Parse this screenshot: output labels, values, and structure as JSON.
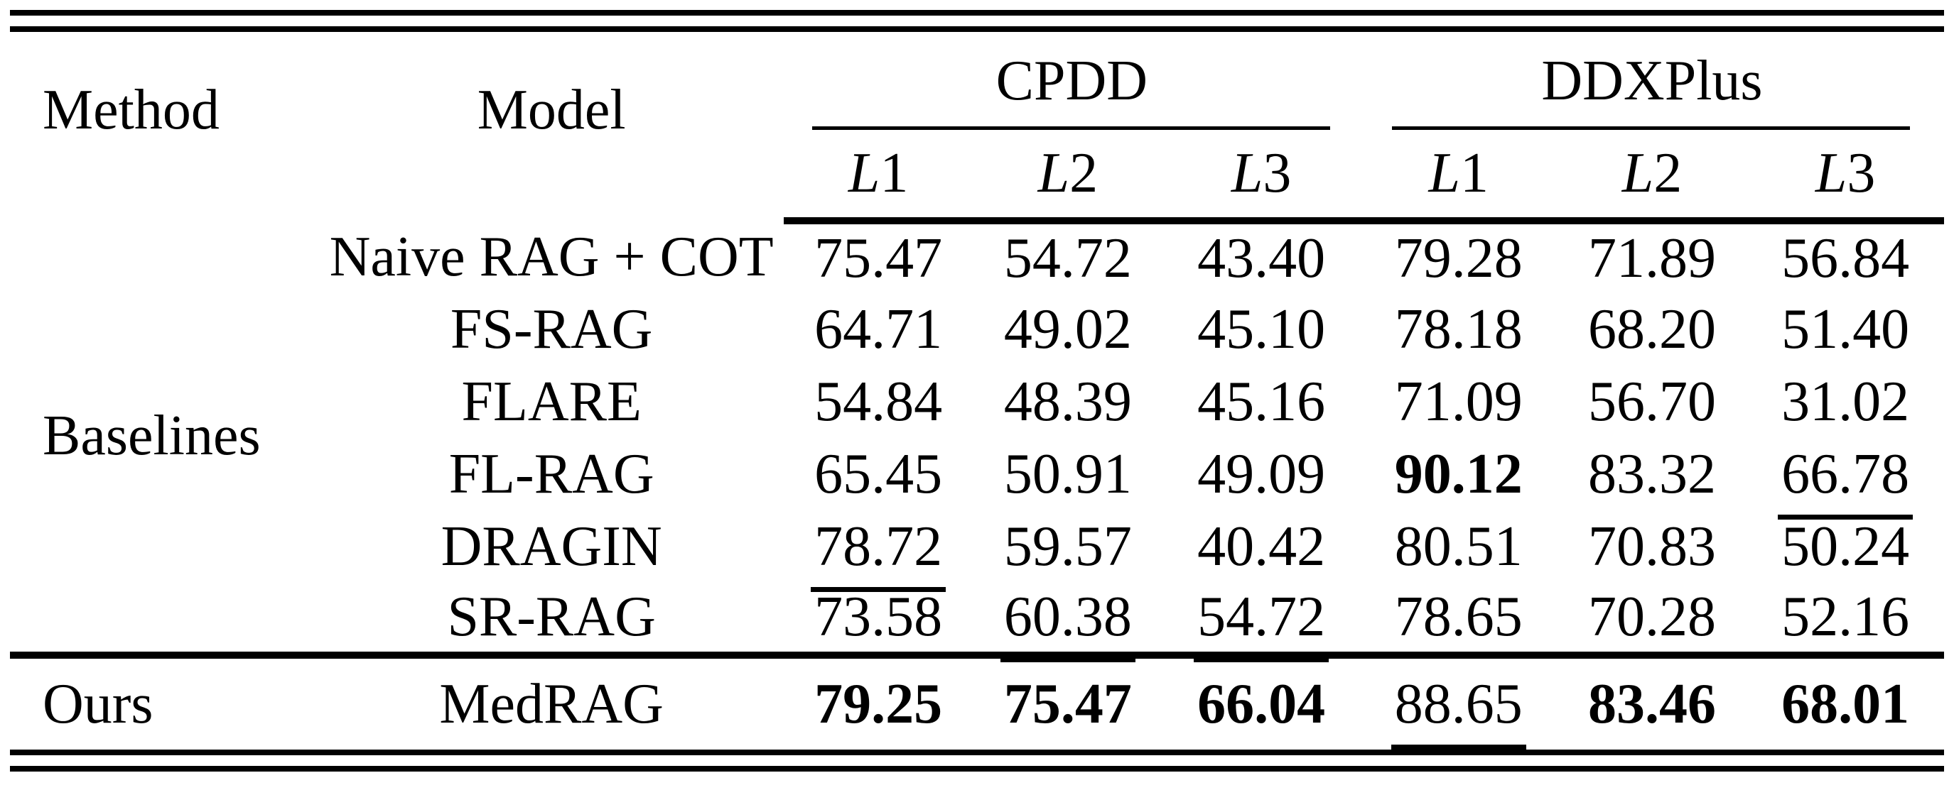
{
  "table": {
    "headers": {
      "method": "Method",
      "model": "Model"
    },
    "groups": [
      {
        "label": "CPDD"
      },
      {
        "label": "DDXPlus"
      }
    ],
    "sub_headers": [
      {
        "letter": "L",
        "digit": "1"
      },
      {
        "letter": "L",
        "digit": "2"
      },
      {
        "letter": "L",
        "digit": "3"
      },
      {
        "letter": "L",
        "digit": "1"
      },
      {
        "letter": "L",
        "digit": "2"
      },
      {
        "letter": "L",
        "digit": "3"
      }
    ],
    "method_group": "Baselines",
    "ours_label": "Ours",
    "rows": [
      {
        "model": "Naive RAG + COT",
        "values": [
          {
            "v": "75.47"
          },
          {
            "v": "54.72"
          },
          {
            "v": "43.40"
          },
          {
            "v": "79.28"
          },
          {
            "v": "71.89"
          },
          {
            "v": "56.84"
          }
        ]
      },
      {
        "model": "FS-RAG",
        "values": [
          {
            "v": "64.71"
          },
          {
            "v": "49.02"
          },
          {
            "v": "45.10"
          },
          {
            "v": "78.18"
          },
          {
            "v": "68.20"
          },
          {
            "v": "51.40"
          }
        ]
      },
      {
        "model": "FLARE",
        "values": [
          {
            "v": "54.84"
          },
          {
            "v": "48.39"
          },
          {
            "v": "45.16"
          },
          {
            "v": "71.09"
          },
          {
            "v": "56.70"
          },
          {
            "v": "31.02"
          }
        ]
      },
      {
        "model": "FL-RAG",
        "values": [
          {
            "v": "65.45"
          },
          {
            "v": "50.91"
          },
          {
            "v": "49.09"
          },
          {
            "v": "90.12",
            "bold": true
          },
          {
            "v": "83.32"
          },
          {
            "v": "66.78",
            "underline": true
          }
        ]
      },
      {
        "model": "DRAGIN",
        "values": [
          {
            "v": "78.72",
            "underline": true
          },
          {
            "v": "59.57"
          },
          {
            "v": "40.42"
          },
          {
            "v": "80.51"
          },
          {
            "v": "70.83"
          },
          {
            "v": "50.24"
          }
        ]
      },
      {
        "model": "SR-RAG",
        "values": [
          {
            "v": "73.58"
          },
          {
            "v": "60.38",
            "underline": true
          },
          {
            "v": "54.72",
            "underline": true
          },
          {
            "v": "78.65"
          },
          {
            "v": "70.28"
          },
          {
            "v": "52.16"
          }
        ]
      }
    ],
    "ours_row": {
      "model": "MedRAG",
      "values": [
        {
          "v": "79.25",
          "bold": true
        },
        {
          "v": "75.47",
          "bold": true
        },
        {
          "v": "66.04",
          "bold": true
        },
        {
          "v": "88.65",
          "underline": true
        },
        {
          "v": "83.46",
          "bold": true
        },
        {
          "v": "68.01",
          "bold": true
        }
      ]
    }
  }
}
